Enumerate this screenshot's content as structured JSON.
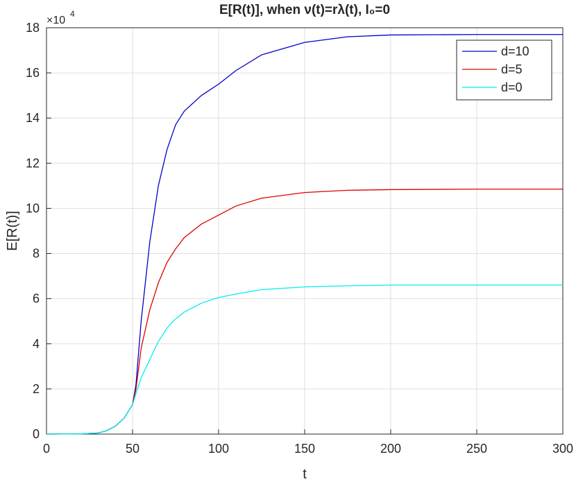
{
  "chart_data": {
    "type": "line",
    "title": "E[R(t)], when ν(t)=rλ(t), I₀=0",
    "x_label": "t",
    "y_label": "E[R(t)]",
    "y_scale_label": "×10",
    "y_scale_exponent": "4",
    "x": [
      0,
      20,
      30,
      35,
      40,
      45,
      50,
      52,
      55,
      60,
      65,
      70,
      75,
      80,
      90,
      100,
      110,
      125,
      150,
      175,
      200,
      250,
      300
    ],
    "series": [
      {
        "name": "d=10",
        "color": "#0000cc",
        "values": [
          0,
          0.01,
          0.05,
          0.15,
          0.35,
          0.7,
          1.3,
          2.2,
          5.0,
          8.5,
          11.0,
          12.6,
          13.7,
          14.3,
          15.0,
          15.5,
          16.1,
          16.8,
          17.35,
          17.6,
          17.68,
          17.7,
          17.7
        ]
      },
      {
        "name": "d=5",
        "color": "#dd0000",
        "values": [
          0,
          0.01,
          0.05,
          0.15,
          0.35,
          0.7,
          1.3,
          2.0,
          3.8,
          5.5,
          6.7,
          7.6,
          8.2,
          8.7,
          9.3,
          9.7,
          10.1,
          10.45,
          10.7,
          10.8,
          10.83,
          10.85,
          10.85
        ]
      },
      {
        "name": "d=0",
        "color": "#00eeee",
        "values": [
          0,
          0.01,
          0.05,
          0.15,
          0.35,
          0.7,
          1.3,
          1.8,
          2.5,
          3.3,
          4.1,
          4.7,
          5.1,
          5.4,
          5.8,
          6.05,
          6.2,
          6.4,
          6.52,
          6.57,
          6.6,
          6.6,
          6.6
        ]
      }
    ],
    "xlim": [
      0,
      300
    ],
    "xticks": [
      0,
      50,
      100,
      150,
      200,
      250,
      300
    ],
    "ylim": [
      0,
      18
    ],
    "yticks": [
      0,
      2,
      4,
      6,
      8,
      10,
      12,
      14,
      16,
      18
    ],
    "grid": true,
    "legend": "top-right"
  }
}
